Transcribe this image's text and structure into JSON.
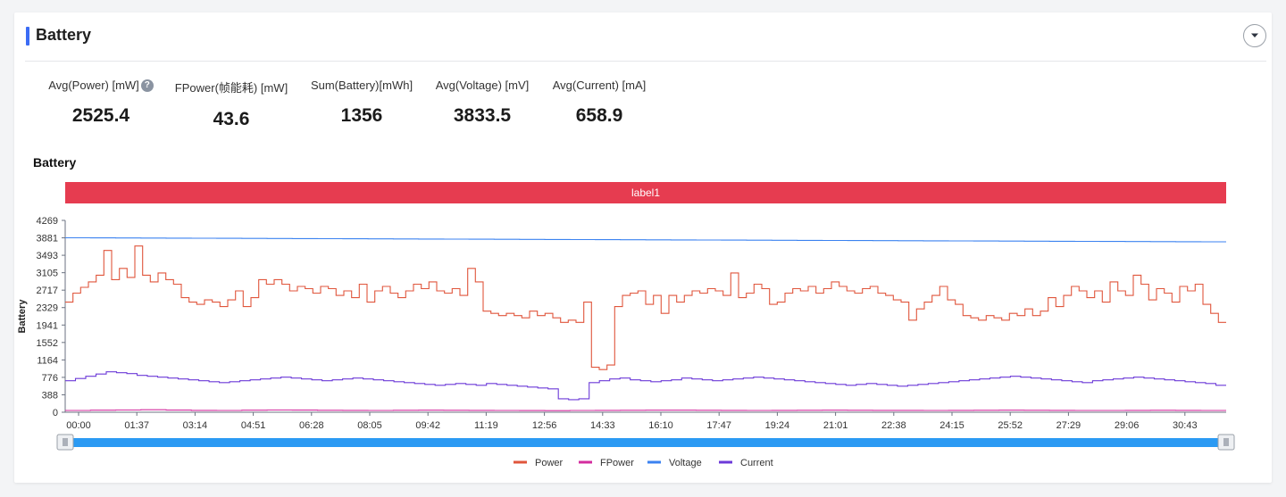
{
  "header": {
    "title": "Battery"
  },
  "metrics": [
    {
      "label": "Avg(Power) [mW]",
      "value": "2525.4",
      "help": true
    },
    {
      "label": "FPower(帧能耗) [mW]",
      "value": "43.6"
    },
    {
      "label": "Sum(Battery)[mWh]",
      "value": "1356"
    },
    {
      "label": "Avg(Voltage) [mV]",
      "value": "3833.5"
    },
    {
      "label": "Avg(Current) [mA]",
      "value": "658.9"
    }
  ],
  "help_glyph": "?",
  "chart_title": "Battery",
  "chart_data": {
    "type": "line",
    "title": "Battery",
    "ylabel": "Battery",
    "xlabel": "",
    "ylim": [
      0,
      4269
    ],
    "y_ticks": [
      "4269",
      "3881",
      "3493",
      "3105",
      "2717",
      "2329",
      "1941",
      "1552",
      "1164",
      "776",
      "388",
      "0"
    ],
    "x_ticks": [
      "00:00",
      "01:37",
      "03:14",
      "04:51",
      "06:28",
      "08:05",
      "09:42",
      "11:19",
      "12:56",
      "14:33",
      "16:10",
      "17:47",
      "19:24",
      "21:01",
      "22:38",
      "24:15",
      "25:52",
      "27:29",
      "29:06",
      "30:43"
    ],
    "x_range_minutes": [
      0,
      32.3
    ],
    "legend_position": "bottom",
    "band": {
      "label": "label1",
      "color": "#e63c50"
    },
    "series": [
      {
        "name": "Power",
        "color": "#e0563c",
        "values": [
          2450,
          2650,
          2780,
          2900,
          3050,
          3600,
          2950,
          3200,
          3000,
          3700,
          3050,
          2900,
          3100,
          2950,
          2850,
          2550,
          2450,
          2400,
          2500,
          2450,
          2350,
          2500,
          2700,
          2350,
          2550,
          2950,
          2850,
          2950,
          2850,
          2700,
          2800,
          2750,
          2650,
          2800,
          2750,
          2600,
          2700,
          2550,
          2850,
          2450,
          2700,
          2800,
          2650,
          2550,
          2700,
          2850,
          2750,
          2900,
          2700,
          2650,
          2750,
          2600,
          3200,
          2900,
          2250,
          2200,
          2150,
          2200,
          2150,
          2100,
          2250,
          2150,
          2200,
          2100,
          2000,
          2050,
          2000,
          2450,
          1000,
          950,
          1050,
          2350,
          2600,
          2650,
          2700,
          2400,
          2600,
          2200,
          2600,
          2450,
          2600,
          2700,
          2650,
          2750,
          2700,
          2600,
          3100,
          2550,
          2650,
          2850,
          2750,
          2400,
          2450,
          2650,
          2750,
          2700,
          2800,
          2650,
          2750,
          2900,
          2800,
          2700,
          2650,
          2750,
          2800,
          2650,
          2600,
          2500,
          2450,
          2050,
          2300,
          2450,
          2600,
          2800,
          2500,
          2400,
          2150,
          2100,
          2050,
          2150,
          2100,
          2050,
          2200,
          2150,
          2300,
          2150,
          2250,
          2550,
          2350,
          2600,
          2800,
          2700,
          2550,
          2700,
          2450,
          2900,
          2700,
          2600,
          3050,
          2850,
          2500,
          2750,
          2650,
          2450,
          2800,
          2700,
          2850,
          2400,
          2200,
          2000
        ]
      },
      {
        "name": "FPower",
        "color": "#d32c9e",
        "values": [
          40,
          45,
          50,
          55,
          48,
          42,
          40,
          45,
          50,
          47,
          44,
          42,
          40,
          43,
          46,
          44,
          42,
          40,
          38,
          36,
          40,
          42,
          44,
          46,
          45,
          43,
          41,
          40,
          42,
          44,
          45,
          43,
          42,
          41,
          40,
          42,
          44,
          46,
          44,
          42,
          40,
          39,
          41,
          43,
          42,
          40
        ]
      },
      {
        "name": "Voltage",
        "color": "#3b82f0",
        "values": [
          3881,
          3880,
          3878,
          3876,
          3874,
          3872,
          3870,
          3868,
          3866,
          3864,
          3862,
          3860,
          3858,
          3856,
          3854,
          3852,
          3850,
          3848,
          3846,
          3844,
          3842,
          3840,
          3838,
          3836,
          3834,
          3832,
          3830,
          3828,
          3826,
          3824,
          3822,
          3820,
          3818,
          3816,
          3814,
          3812,
          3810,
          3808,
          3806,
          3804,
          3802,
          3800,
          3798,
          3796,
          3794,
          3792
        ]
      },
      {
        "name": "Current",
        "color": "#6c3ad8",
        "values": [
          700,
          750,
          800,
          850,
          900,
          880,
          860,
          820,
          800,
          780,
          760,
          740,
          720,
          700,
          680,
          660,
          680,
          700,
          720,
          740,
          760,
          780,
          760,
          740,
          720,
          700,
          720,
          740,
          760,
          740,
          720,
          700,
          680,
          660,
          640,
          620,
          600,
          620,
          640,
          620,
          600,
          640,
          620,
          600,
          580,
          560,
          540,
          520,
          300,
          280,
          300,
          660,
          700,
          740,
          760,
          720,
          700,
          680,
          700,
          720,
          760,
          740,
          720,
          700,
          720,
          740,
          760,
          780,
          760,
          740,
          720,
          700,
          680,
          660,
          640,
          620,
          600,
          620,
          640,
          620,
          600,
          580,
          600,
          620,
          640,
          660,
          680,
          700,
          720,
          740,
          760,
          780,
          800,
          780,
          760,
          740,
          720,
          700,
          680,
          660,
          700,
          720,
          740,
          760,
          780,
          760,
          740,
          720,
          700,
          680,
          660,
          640,
          600
        ]
      }
    ]
  }
}
